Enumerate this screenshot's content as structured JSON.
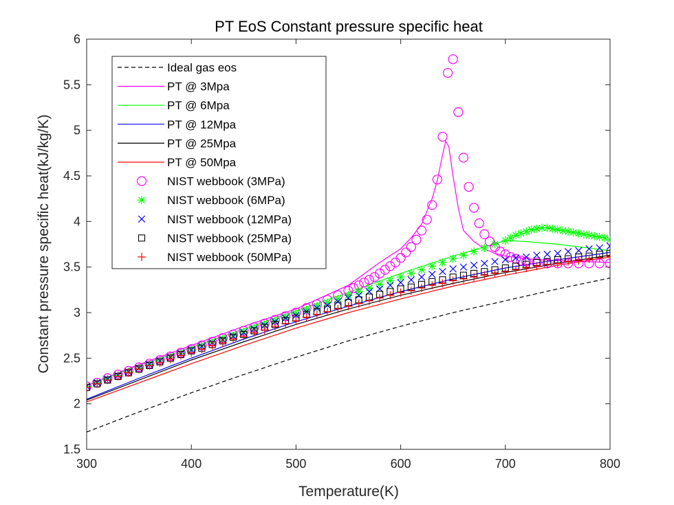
{
  "chart_data": {
    "type": "line",
    "title": "PT EoS Constant pressure specific heat",
    "xlabel": "Temperature(K)",
    "ylabel": "Constant pressure specific heat(kJ/kg/K)",
    "xlim": [
      300,
      800
    ],
    "ylim": [
      1.5,
      6
    ],
    "xticks": [
      300,
      400,
      500,
      600,
      700,
      800
    ],
    "yticks": [
      1.5,
      2,
      2.5,
      3,
      3.5,
      4,
      4.5,
      5,
      5.5,
      6
    ],
    "grid": false,
    "legend_position": "top-left",
    "colors": {
      "ideal": "#000000",
      "p3": "#ff00ff",
      "p6": "#00ff00",
      "p12": "#0000ff",
      "p25": "#000000",
      "p50": "#ff0000"
    },
    "lines": [
      {
        "name": "Ideal gas eos",
        "color_key": "ideal",
        "dash": true,
        "x": [
          300,
          350,
          400,
          450,
          500,
          550,
          600,
          650,
          700,
          750,
          800
        ],
        "y": [
          1.69,
          1.91,
          2.12,
          2.32,
          2.51,
          2.69,
          2.85,
          3.0,
          3.13,
          3.26,
          3.38
        ]
      },
      {
        "name": "PT @ 3Mpa",
        "color_key": "p3",
        "dash": false,
        "x": [
          300,
          350,
          400,
          450,
          500,
          550,
          580,
          600,
          610,
          620,
          630,
          635,
          640,
          643,
          646,
          650,
          655,
          660,
          670,
          680,
          690,
          700,
          720,
          750,
          800
        ],
        "y": [
          2.2,
          2.43,
          2.64,
          2.85,
          3.04,
          3.3,
          3.55,
          3.7,
          3.82,
          3.97,
          4.25,
          4.45,
          4.73,
          4.88,
          4.82,
          4.5,
          4.15,
          3.9,
          3.78,
          3.7,
          3.65,
          3.62,
          3.59,
          3.57,
          3.55
        ]
      },
      {
        "name": "PT @ 6Mpa",
        "color_key": "p6",
        "dash": false,
        "x": [
          300,
          350,
          400,
          450,
          500,
          550,
          600,
          650,
          680,
          700,
          720,
          750,
          800
        ],
        "y": [
          2.2,
          2.42,
          2.62,
          2.82,
          3.02,
          3.22,
          3.43,
          3.62,
          3.72,
          3.79,
          3.78,
          3.75,
          3.68
        ]
      },
      {
        "name": "PT @ 12Mpa",
        "color_key": "p12",
        "dash": false,
        "x": [
          300,
          350,
          400,
          450,
          500,
          550,
          600,
          650,
          700,
          750,
          800
        ],
        "y": [
          2.05,
          2.28,
          2.5,
          2.71,
          2.9,
          3.07,
          3.23,
          3.37,
          3.49,
          3.58,
          3.66
        ]
      },
      {
        "name": "PT @ 25Mpa",
        "color_key": "p25",
        "dash": false,
        "x": [
          300,
          350,
          400,
          450,
          500,
          550,
          600,
          650,
          700,
          750,
          800
        ],
        "y": [
          2.04,
          2.26,
          2.48,
          2.68,
          2.87,
          3.04,
          3.19,
          3.32,
          3.44,
          3.54,
          3.63
        ]
      },
      {
        "name": "PT @ 50Mpa",
        "color_key": "p50",
        "dash": false,
        "x": [
          300,
          350,
          400,
          450,
          500,
          550,
          600,
          650,
          700,
          750,
          800
        ],
        "y": [
          2.02,
          2.23,
          2.44,
          2.64,
          2.83,
          3.0,
          3.15,
          3.29,
          3.41,
          3.52,
          3.61
        ]
      }
    ],
    "scatter": [
      {
        "name": "NIST webbook (3MPa)",
        "color_key": "p3",
        "marker": "circle",
        "x": [
          300,
          310,
          320,
          330,
          340,
          350,
          360,
          370,
          380,
          390,
          400,
          410,
          420,
          430,
          440,
          450,
          460,
          470,
          480,
          490,
          500,
          510,
          520,
          530,
          540,
          550,
          555,
          560,
          565,
          570,
          575,
          580,
          585,
          590,
          595,
          600,
          605,
          610,
          615,
          620,
          625,
          630,
          635,
          640,
          645,
          650,
          655,
          660,
          665,
          670,
          675,
          680,
          685,
          690,
          695,
          700,
          705,
          710,
          715,
          720,
          730,
          740,
          750,
          760,
          770,
          780,
          790,
          800
        ],
        "y": [
          2.19,
          2.23,
          2.28,
          2.32,
          2.36,
          2.4,
          2.44,
          2.48,
          2.52,
          2.56,
          2.6,
          2.64,
          2.68,
          2.72,
          2.76,
          2.8,
          2.84,
          2.88,
          2.92,
          2.96,
          3.0,
          3.05,
          3.09,
          3.14,
          3.19,
          3.24,
          3.27,
          3.3,
          3.33,
          3.36,
          3.39,
          3.43,
          3.47,
          3.51,
          3.55,
          3.6,
          3.66,
          3.72,
          3.8,
          3.9,
          4.02,
          4.18,
          4.46,
          4.93,
          5.63,
          5.78,
          5.2,
          4.7,
          4.38,
          4.15,
          3.98,
          3.86,
          3.78,
          3.72,
          3.67,
          3.64,
          3.61,
          3.59,
          3.57,
          3.56,
          3.55,
          3.54,
          3.54,
          3.54,
          3.54,
          3.54,
          3.54,
          3.54
        ]
      },
      {
        "name": "NIST webbook (6MPa)",
        "color_key": "p6",
        "marker": "star",
        "x": [
          300,
          310,
          320,
          330,
          340,
          350,
          360,
          370,
          380,
          390,
          400,
          410,
          420,
          430,
          440,
          450,
          460,
          470,
          480,
          490,
          500,
          510,
          520,
          530,
          540,
          550,
          560,
          570,
          580,
          590,
          600,
          610,
          620,
          630,
          640,
          650,
          660,
          670,
          680,
          690,
          700,
          705,
          710,
          715,
          720,
          725,
          730,
          735,
          740,
          745,
          750,
          755,
          760,
          765,
          770,
          775,
          780,
          785,
          790,
          795,
          800
        ],
        "y": [
          2.19,
          2.23,
          2.27,
          2.31,
          2.35,
          2.39,
          2.43,
          2.47,
          2.51,
          2.55,
          2.59,
          2.63,
          2.67,
          2.71,
          2.75,
          2.79,
          2.83,
          2.87,
          2.91,
          2.95,
          2.99,
          3.03,
          3.07,
          3.11,
          3.15,
          3.19,
          3.23,
          3.27,
          3.31,
          3.35,
          3.39,
          3.43,
          3.47,
          3.51,
          3.55,
          3.59,
          3.63,
          3.67,
          3.71,
          3.75,
          3.79,
          3.82,
          3.85,
          3.87,
          3.89,
          3.91,
          3.92,
          3.93,
          3.93,
          3.92,
          3.91,
          3.9,
          3.89,
          3.88,
          3.87,
          3.86,
          3.85,
          3.84,
          3.83,
          3.82,
          3.8
        ]
      },
      {
        "name": "NIST webbook (12MPa)",
        "color_key": "p12",
        "marker": "x",
        "x": [
          300,
          310,
          320,
          330,
          340,
          350,
          360,
          370,
          380,
          390,
          400,
          410,
          420,
          430,
          440,
          450,
          460,
          470,
          480,
          490,
          500,
          510,
          520,
          530,
          540,
          550,
          560,
          570,
          580,
          590,
          600,
          610,
          620,
          630,
          640,
          650,
          660,
          670,
          680,
          690,
          700,
          710,
          720,
          730,
          740,
          750,
          760,
          770,
          780,
          790,
          800
        ],
        "y": [
          2.19,
          2.23,
          2.27,
          2.31,
          2.35,
          2.39,
          2.43,
          2.47,
          2.51,
          2.55,
          2.59,
          2.63,
          2.67,
          2.7,
          2.74,
          2.78,
          2.82,
          2.86,
          2.9,
          2.94,
          2.97,
          3.01,
          3.05,
          3.08,
          3.12,
          3.16,
          3.19,
          3.23,
          3.26,
          3.3,
          3.33,
          3.36,
          3.39,
          3.42,
          3.45,
          3.48,
          3.5,
          3.52,
          3.54,
          3.56,
          3.58,
          3.6,
          3.61,
          3.63,
          3.64,
          3.65,
          3.67,
          3.68,
          3.7,
          3.71,
          3.73
        ]
      },
      {
        "name": "NIST webbook (25MPa)",
        "color_key": "p25",
        "marker": "square",
        "x": [
          300,
          310,
          320,
          330,
          340,
          350,
          360,
          370,
          380,
          390,
          400,
          410,
          420,
          430,
          440,
          450,
          460,
          470,
          480,
          490,
          500,
          510,
          520,
          530,
          540,
          550,
          560,
          570,
          580,
          590,
          600,
          610,
          620,
          630,
          640,
          650,
          660,
          670,
          680,
          690,
          700,
          710,
          720,
          730,
          740,
          750,
          760,
          770,
          780,
          790,
          800
        ],
        "y": [
          2.18,
          2.22,
          2.26,
          2.3,
          2.34,
          2.38,
          2.42,
          2.46,
          2.5,
          2.54,
          2.58,
          2.61,
          2.65,
          2.69,
          2.73,
          2.76,
          2.8,
          2.84,
          2.87,
          2.91,
          2.94,
          2.98,
          3.01,
          3.04,
          3.08,
          3.11,
          3.14,
          3.17,
          3.2,
          3.23,
          3.26,
          3.28,
          3.31,
          3.34,
          3.36,
          3.39,
          3.41,
          3.43,
          3.45,
          3.47,
          3.49,
          3.51,
          3.53,
          3.55,
          3.56,
          3.58,
          3.59,
          3.61,
          3.62,
          3.64,
          3.65
        ]
      },
      {
        "name": "NIST webbook (50MPa)",
        "color_key": "p50",
        "marker": "plus",
        "x": [
          300,
          310,
          320,
          330,
          340,
          350,
          360,
          370,
          380,
          390,
          400,
          410,
          420,
          430,
          440,
          450,
          460,
          470,
          480,
          490,
          500,
          510,
          520,
          530,
          540,
          550,
          560,
          570,
          580,
          590,
          600,
          610,
          620,
          630,
          640,
          650,
          660,
          670,
          680,
          690,
          700,
          710,
          720,
          730,
          740,
          750,
          760,
          770,
          780,
          790,
          800
        ],
        "y": [
          2.18,
          2.22,
          2.26,
          2.3,
          2.34,
          2.38,
          2.42,
          2.45,
          2.49,
          2.53,
          2.56,
          2.6,
          2.64,
          2.67,
          2.71,
          2.74,
          2.78,
          2.81,
          2.85,
          2.88,
          2.91,
          2.95,
          2.98,
          3.01,
          3.04,
          3.07,
          3.1,
          3.13,
          3.16,
          3.19,
          3.22,
          3.24,
          3.27,
          3.3,
          3.32,
          3.35,
          3.37,
          3.39,
          3.41,
          3.43,
          3.45,
          3.47,
          3.49,
          3.51,
          3.53,
          3.54,
          3.56,
          3.57,
          3.59,
          3.6,
          3.62
        ]
      }
    ],
    "legend": [
      "Ideal gas eos",
      "PT @ 3Mpa",
      "PT @ 6Mpa",
      "PT @ 12Mpa",
      "PT @ 25Mpa",
      "PT @ 50Mpa",
      "NIST webbook (3MPa)",
      "NIST webbook (6MPa)",
      "NIST webbook (12MPa)",
      "NIST webbook (25MPa)",
      "NIST webbook (50MPa)"
    ]
  }
}
